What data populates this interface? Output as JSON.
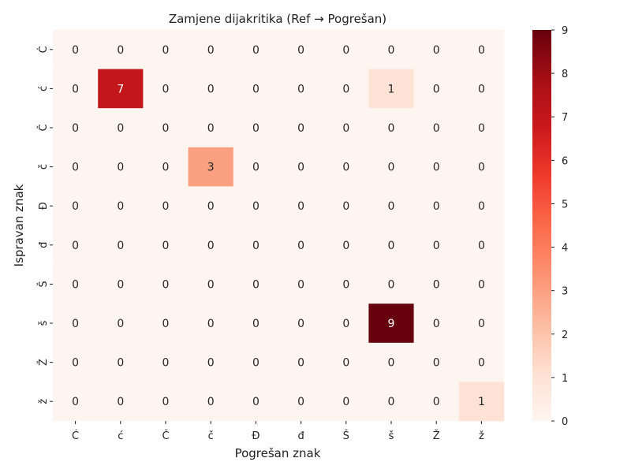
{
  "chart_data": {
    "type": "heatmap",
    "title": "Zamjene dijakritika (Ref → Pogrešan)",
    "xlabel": "Pogrešan znak",
    "ylabel": "Ispravan znak",
    "x_categories": [
      "Ć",
      "ć",
      "Č",
      "č",
      "Đ",
      "đ",
      "Š",
      "š",
      "Ž",
      "ž"
    ],
    "y_categories": [
      "Ć",
      "ć",
      "Č",
      "č",
      "Đ",
      "đ",
      "Š",
      "š",
      "Ž",
      "ž"
    ],
    "values": [
      [
        0,
        0,
        0,
        0,
        0,
        0,
        0,
        0,
        0,
        0
      ],
      [
        0,
        7,
        0,
        0,
        0,
        0,
        0,
        1,
        0,
        0
      ],
      [
        0,
        0,
        0,
        0,
        0,
        0,
        0,
        0,
        0,
        0
      ],
      [
        0,
        0,
        0,
        3,
        0,
        0,
        0,
        0,
        0,
        0
      ],
      [
        0,
        0,
        0,
        0,
        0,
        0,
        0,
        0,
        0,
        0
      ],
      [
        0,
        0,
        0,
        0,
        0,
        0,
        0,
        0,
        0,
        0
      ],
      [
        0,
        0,
        0,
        0,
        0,
        0,
        0,
        0,
        0,
        0
      ],
      [
        0,
        0,
        0,
        0,
        0,
        0,
        0,
        9,
        0,
        0
      ],
      [
        0,
        0,
        0,
        0,
        0,
        0,
        0,
        0,
        0,
        0
      ],
      [
        0,
        0,
        0,
        0,
        0,
        0,
        0,
        0,
        0,
        1
      ]
    ],
    "colorbar": {
      "min": 0,
      "max": 9,
      "ticks": [
        0,
        1,
        2,
        3,
        4,
        5,
        6,
        7,
        8,
        9
      ],
      "colormap": "Reds"
    },
    "annotated": true,
    "grid": false
  }
}
